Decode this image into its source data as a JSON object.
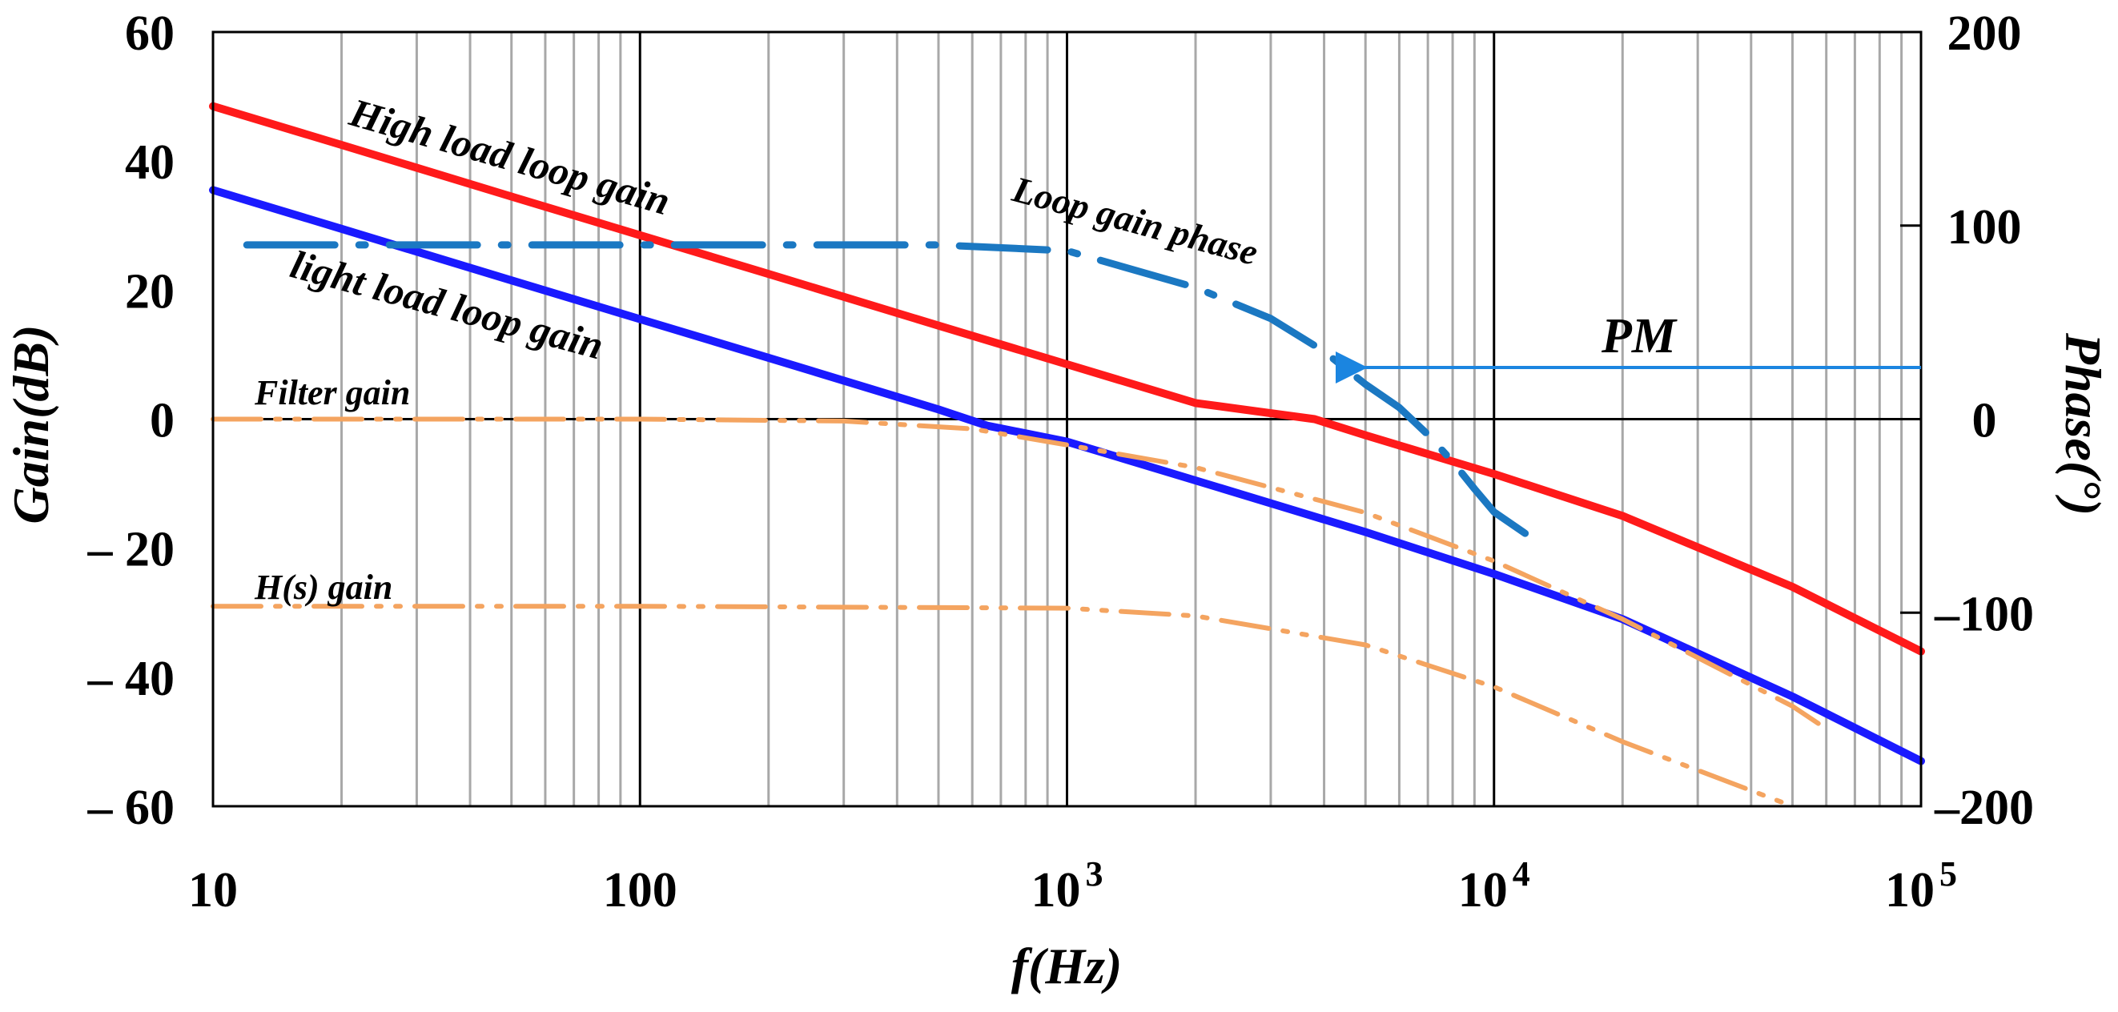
{
  "chart_data": {
    "type": "line",
    "title": "",
    "xlabel": "f(Hz)",
    "ylabel": "Gain(dB)",
    "y2label": "Phase(°)",
    "xscale": "log",
    "xlim": [
      10,
      100000
    ],
    "ylim": [
      -60,
      60
    ],
    "y2lim": [
      -200,
      200
    ],
    "grid": true,
    "x_ticks": [
      {
        "base": "10",
        "sup": ""
      },
      {
        "base": "100",
        "sup": ""
      },
      {
        "base": "10",
        "sup": "3"
      },
      {
        "base": "10",
        "sup": "4"
      },
      {
        "base": "10",
        "sup": "5"
      }
    ],
    "y_ticks": [
      "60",
      "40",
      "20",
      "0",
      "– 20",
      "– 40",
      "– 60"
    ],
    "y2_ticks": [
      "200",
      "100",
      "0",
      "–100",
      "–200"
    ],
    "colors": {
      "high_load": "#ff1a1a",
      "light_load": "#1a1aff",
      "phase": "#1b78c2",
      "filter": "#f4a460",
      "hs": "#f4a460",
      "pm": "#1b85e0"
    },
    "series": [
      {
        "name": "High load loop gain",
        "axis": "left",
        "style": "solid",
        "x": [
          10,
          20,
          50,
          100,
          200,
          500,
          1000,
          2000,
          3800,
          5000,
          10000,
          20000,
          50000,
          100000
        ],
        "y": [
          48.5,
          42.5,
          34.5,
          28.5,
          22.5,
          14.5,
          8.5,
          2.5,
          0,
          -2.5,
          -8.5,
          -15,
          -26,
          -36
        ]
      },
      {
        "name": "light load loop gain",
        "axis": "left",
        "style": "solid",
        "x": [
          10,
          20,
          50,
          100,
          200,
          500,
          650,
          1000,
          2000,
          5000,
          10000,
          20000,
          50000,
          100000
        ],
        "y": [
          35.5,
          29.5,
          21.5,
          15.5,
          9.5,
          1.5,
          -1,
          -3.5,
          -9.5,
          -17.5,
          -24,
          -31,
          -43,
          -53
        ]
      },
      {
        "name": "Filter gain",
        "axis": "left",
        "style": "dashdotdot",
        "x": [
          10,
          100,
          300,
          600,
          1000,
          2000,
          5000,
          10000,
          20000,
          50000,
          60000
        ],
        "y": [
          0,
          0,
          -0.3,
          -1.5,
          -4,
          -7.5,
          -14.5,
          -22,
          -31,
          -44.5,
          -48
        ]
      },
      {
        "name": "H(s) gain",
        "axis": "left",
        "style": "dashdotdot",
        "x": [
          10,
          100,
          1000,
          2000,
          5000,
          10000,
          20000,
          50000
        ],
        "y": [
          -29,
          -29,
          -29.3,
          -30.5,
          -35,
          -41.5,
          -50,
          -60
        ]
      },
      {
        "name": "Loop gain phase",
        "axis": "right",
        "style": "longdashdot",
        "x": [
          12,
          100,
          500,
          1000,
          2000,
          3000,
          4000,
          5000,
          6000,
          7000,
          8000,
          9000,
          10000,
          12000
        ],
        "y": [
          90,
          90,
          90,
          87,
          68,
          52,
          35,
          18,
          6,
          -8,
          -22,
          -36,
          -48,
          -60
        ]
      }
    ],
    "annotations": [
      {
        "text": "High load loop gain",
        "target": "High load loop gain"
      },
      {
        "text": "light load loop gain",
        "target": "light load loop gain"
      },
      {
        "text": "Loop gain phase",
        "target": "Loop gain phase"
      },
      {
        "text": "Filter gain",
        "target": "Filter gain"
      },
      {
        "text": "H(s) gain",
        "target": "H(s) gain"
      },
      {
        "text": "PM",
        "target": "phase margin arrow"
      }
    ]
  }
}
